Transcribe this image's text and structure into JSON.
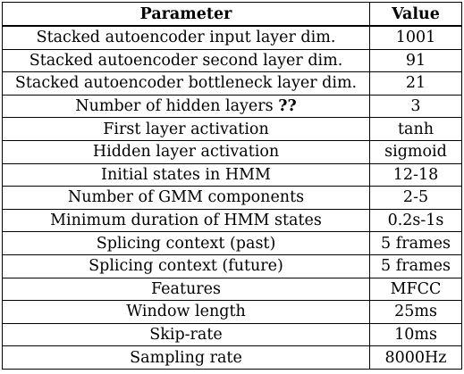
{
  "table": {
    "headers": [
      "Parameter",
      "Value"
    ],
    "rows": [
      {
        "parameter": "Stacked autoencoder input layer dim.",
        "value": "1001"
      },
      {
        "parameter": "Stacked autoencoder second layer dim.",
        "value": "91"
      },
      {
        "parameter": "Stacked autoencoder bottleneck layer dim.",
        "value": "21"
      },
      {
        "parameter": "Number of hidden layers",
        "parameter_ref": "??",
        "value": "3"
      },
      {
        "parameter": "First layer activation",
        "value": "tanh"
      },
      {
        "parameter": "Hidden layer activation",
        "value": "sigmoid"
      },
      {
        "parameter": "Initial states in HMM",
        "value": "12-18"
      },
      {
        "parameter": "Number of GMM components",
        "value": "2-5"
      },
      {
        "parameter": "Minimum duration of HMM states",
        "value": "0.2s-1s"
      },
      {
        "parameter": "Splicing context (past)",
        "value": "5 frames"
      },
      {
        "parameter": "Splicing context (future)",
        "value": "5 frames"
      },
      {
        "parameter": "Features",
        "value": "MFCC"
      },
      {
        "parameter": "Window length",
        "value": "25ms"
      },
      {
        "parameter": "Skip-rate",
        "value": "10ms"
      },
      {
        "parameter": "Sampling rate",
        "value": "8000Hz"
      }
    ]
  }
}
